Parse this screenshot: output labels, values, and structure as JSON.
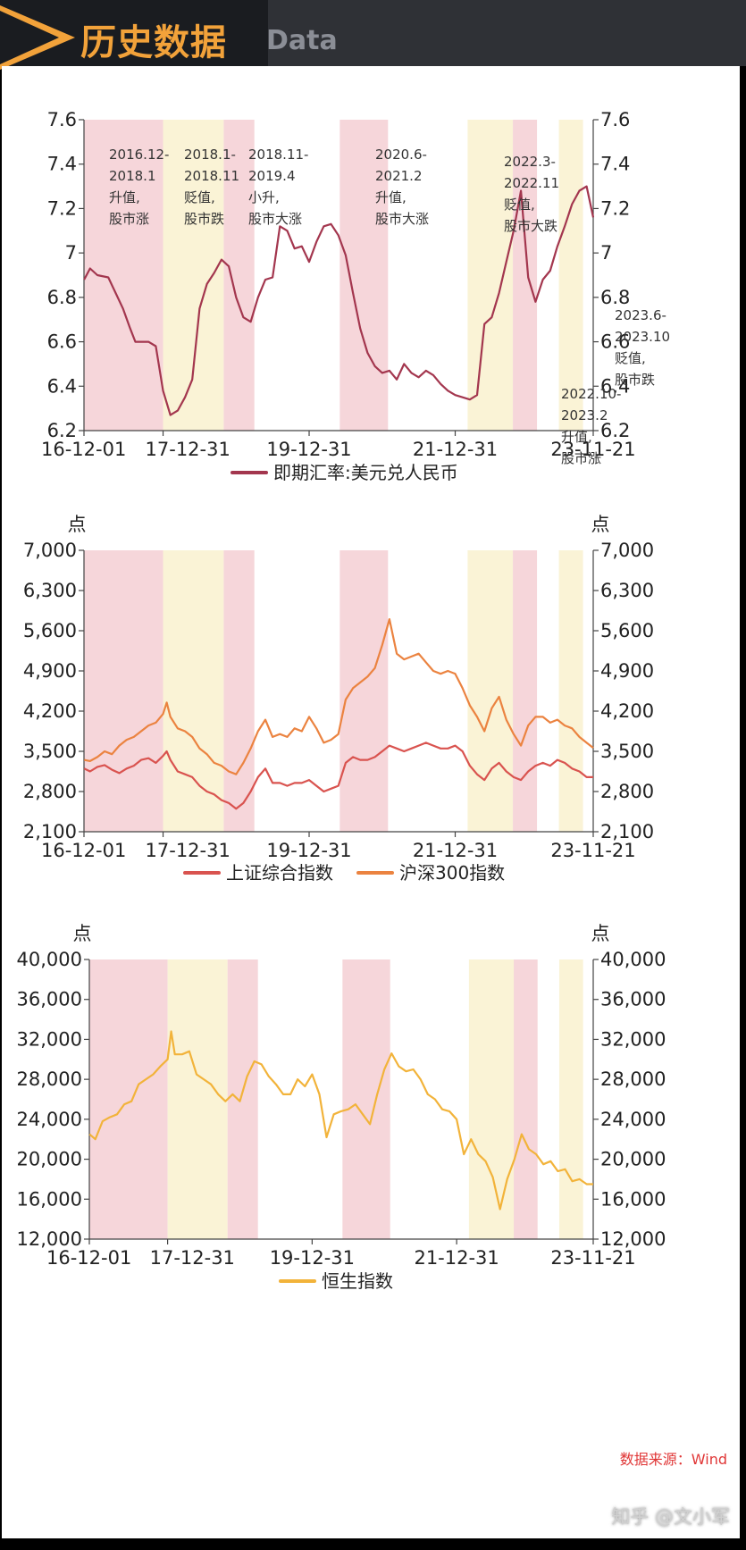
{
  "header": {
    "title": "历史数据",
    "subtitle": "Data"
  },
  "source_label": "数据来源：Wind",
  "watermark": "知乎 @文小军",
  "colors": {
    "fx_line": "#a3364e",
    "shanghai": "#d9534f",
    "csi300": "#eb8340",
    "hangseng": "#f2b33a",
    "band_pink": "#f6d6da",
    "band_yellow": "#faf3d6",
    "header_accent": "#f2a23a"
  },
  "chart_data": [
    {
      "type": "line",
      "title": "即期汇率:美元兑人民币",
      "xlabel": "",
      "ylabel": "",
      "x_tick_labels": [
        "16-12-01",
        "17-12-31",
        "19-12-31",
        "21-12-31",
        "23-11-21"
      ],
      "x_tick_dates": [
        2016.917,
        2018.0,
        2020.0,
        2022.0,
        2023.89
      ],
      "xlim": [
        2016.917,
        2023.89
      ],
      "ylim": [
        6.2,
        7.6
      ],
      "y_ticks": [
        6.2,
        6.4,
        6.6,
        6.8,
        7,
        7.2,
        7.4,
        7.6
      ],
      "y_tick_labels": [
        "6.2",
        "6.4",
        "6.6",
        "6.8",
        "7",
        "7.2",
        "7.4",
        "7.6"
      ],
      "legend": [
        "即期汇率:美元兑人民币"
      ],
      "series": [
        {
          "name": "即期汇率:美元兑人民币",
          "x": [
            2016.92,
            2017.0,
            2017.1,
            2017.25,
            2017.35,
            2017.45,
            2017.55,
            2017.62,
            2017.7,
            2017.8,
            2017.9,
            2018.0,
            2018.1,
            2018.2,
            2018.3,
            2018.4,
            2018.5,
            2018.6,
            2018.7,
            2018.8,
            2018.9,
            2019.0,
            2019.1,
            2019.2,
            2019.3,
            2019.4,
            2019.5,
            2019.6,
            2019.7,
            2019.8,
            2019.9,
            2020.0,
            2020.1,
            2020.2,
            2020.3,
            2020.4,
            2020.5,
            2020.6,
            2020.7,
            2020.8,
            2020.9,
            2021.0,
            2021.1,
            2021.2,
            2021.3,
            2021.4,
            2021.5,
            2021.6,
            2021.7,
            2021.8,
            2021.9,
            2022.0,
            2022.1,
            2022.2,
            2022.3,
            2022.4,
            2022.5,
            2022.6,
            2022.7,
            2022.8,
            2022.9,
            2023.0,
            2023.1,
            2023.2,
            2023.3,
            2023.4,
            2023.5,
            2023.6,
            2023.7,
            2023.8,
            2023.89
          ],
          "values": [
            6.88,
            6.93,
            6.9,
            6.89,
            6.82,
            6.75,
            6.66,
            6.6,
            6.6,
            6.6,
            6.58,
            6.38,
            6.27,
            6.29,
            6.35,
            6.43,
            6.75,
            6.86,
            6.91,
            6.97,
            6.94,
            6.8,
            6.71,
            6.69,
            6.8,
            6.88,
            6.89,
            7.12,
            7.1,
            7.02,
            7.03,
            6.96,
            7.05,
            7.12,
            7.13,
            7.08,
            6.99,
            6.82,
            6.66,
            6.55,
            6.49,
            6.46,
            6.47,
            6.43,
            6.5,
            6.46,
            6.44,
            6.47,
            6.45,
            6.41,
            6.38,
            6.36,
            6.35,
            6.34,
            6.36,
            6.68,
            6.71,
            6.82,
            6.96,
            7.1,
            7.28,
            6.89,
            6.78,
            6.88,
            6.92,
            7.03,
            7.12,
            7.22,
            7.28,
            7.3,
            7.16
          ]
        }
      ],
      "bands": [
        {
          "start": 2016.917,
          "end": 2018.0,
          "color": "pink",
          "label": [
            "2016.12-",
            "2018.1",
            "升值,",
            "股市涨"
          ]
        },
        {
          "start": 2018.0,
          "end": 2018.83,
          "color": "yellow",
          "label": [
            "2018.1-",
            "2018.11",
            "贬值,",
            "股市跌"
          ]
        },
        {
          "start": 2018.83,
          "end": 2019.25,
          "color": "pink",
          "label": [
            "2018.11-",
            "2019.4",
            "小升,",
            "股市大涨"
          ]
        },
        {
          "start": 2020.42,
          "end": 2021.08,
          "color": "pink",
          "label": [
            "2020.6-",
            "2021.2",
            "升值,",
            "股市大涨"
          ]
        },
        {
          "start": 2022.17,
          "end": 2022.79,
          "color": "yellow",
          "label": [
            "2022.3-",
            "2022.11",
            "贬值,",
            "股市大跌"
          ]
        },
        {
          "start": 2022.79,
          "end": 2023.12,
          "color": "pink",
          "label": [
            "2022.10-",
            "2023.2",
            "升值,",
            "股市涨"
          ]
        },
        {
          "start": 2023.42,
          "end": 2023.75,
          "color": "yellow",
          "label": [
            "2023.6-",
            "2023.10",
            "贬值,",
            "股市跌"
          ]
        }
      ]
    },
    {
      "type": "line",
      "title": "",
      "unit_label": "点",
      "x_tick_labels": [
        "16-12-01",
        "17-12-31",
        "19-12-31",
        "21-12-31",
        "23-11-21"
      ],
      "x_tick_dates": [
        2016.917,
        2018.0,
        2020.0,
        2022.0,
        2023.89
      ],
      "xlim": [
        2016.917,
        2023.89
      ],
      "ylim": [
        2100,
        7000
      ],
      "y_ticks": [
        2100,
        2800,
        3500,
        4200,
        4900,
        5600,
        6300,
        7000
      ],
      "y_tick_labels": [
        "2,100",
        "2,800",
        "3,500",
        "4,200",
        "4,900",
        "5,600",
        "6,300",
        "7,000"
      ],
      "legend": [
        "上证综合指数",
        "沪深300指数"
      ],
      "series": [
        {
          "name": "上证综合指数",
          "x": [
            2016.92,
            2017.0,
            2017.1,
            2017.2,
            2017.3,
            2017.4,
            2017.5,
            2017.6,
            2017.7,
            2017.8,
            2017.9,
            2018.0,
            2018.05,
            2018.1,
            2018.2,
            2018.3,
            2018.4,
            2018.5,
            2018.6,
            2018.7,
            2018.8,
            2018.9,
            2019.0,
            2019.1,
            2019.2,
            2019.3,
            2019.4,
            2019.5,
            2019.6,
            2019.7,
            2019.8,
            2019.9,
            2020.0,
            2020.1,
            2020.2,
            2020.3,
            2020.4,
            2020.5,
            2020.6,
            2020.7,
            2020.8,
            2020.9,
            2021.0,
            2021.1,
            2021.2,
            2021.3,
            2021.4,
            2021.5,
            2021.6,
            2021.7,
            2021.8,
            2021.9,
            2022.0,
            2022.1,
            2022.2,
            2022.3,
            2022.4,
            2022.5,
            2022.6,
            2022.7,
            2022.8,
            2022.9,
            2023.0,
            2023.1,
            2023.2,
            2023.3,
            2023.4,
            2023.5,
            2023.6,
            2023.7,
            2023.8,
            2023.89
          ],
          "values": [
            3200,
            3150,
            3230,
            3260,
            3180,
            3120,
            3200,
            3250,
            3350,
            3380,
            3300,
            3420,
            3500,
            3350,
            3150,
            3100,
            3050,
            2900,
            2800,
            2750,
            2650,
            2600,
            2500,
            2600,
            2800,
            3050,
            3200,
            2950,
            2950,
            2900,
            2950,
            2950,
            3000,
            2900,
            2800,
            2850,
            2900,
            3300,
            3400,
            3350,
            3350,
            3400,
            3500,
            3600,
            3550,
            3500,
            3550,
            3600,
            3650,
            3600,
            3550,
            3550,
            3600,
            3500,
            3250,
            3100,
            3000,
            3200,
            3300,
            3150,
            3050,
            3000,
            3150,
            3250,
            3300,
            3250,
            3350,
            3300,
            3200,
            3150,
            3050,
            3050
          ]
        },
        {
          "name": "沪深300指数",
          "x": [
            2016.92,
            2017.0,
            2017.1,
            2017.2,
            2017.3,
            2017.4,
            2017.5,
            2017.6,
            2017.7,
            2017.8,
            2017.9,
            2018.0,
            2018.05,
            2018.1,
            2018.2,
            2018.3,
            2018.4,
            2018.5,
            2018.6,
            2018.7,
            2018.8,
            2018.9,
            2019.0,
            2019.1,
            2019.2,
            2019.3,
            2019.4,
            2019.5,
            2019.6,
            2019.7,
            2019.8,
            2019.9,
            2020.0,
            2020.1,
            2020.2,
            2020.3,
            2020.4,
            2020.5,
            2020.6,
            2020.7,
            2020.8,
            2020.9,
            2021.0,
            2021.1,
            2021.2,
            2021.3,
            2021.4,
            2021.5,
            2021.6,
            2021.7,
            2021.8,
            2021.9,
            2022.0,
            2022.1,
            2022.2,
            2022.3,
            2022.4,
            2022.5,
            2022.6,
            2022.7,
            2022.8,
            2022.9,
            2023.0,
            2023.1,
            2023.2,
            2023.3,
            2023.4,
            2023.5,
            2023.6,
            2023.7,
            2023.8,
            2023.89
          ],
          "values": [
            3350,
            3330,
            3400,
            3500,
            3450,
            3600,
            3700,
            3750,
            3850,
            3950,
            4000,
            4150,
            4350,
            4100,
            3900,
            3850,
            3750,
            3550,
            3450,
            3300,
            3250,
            3150,
            3100,
            3300,
            3550,
            3850,
            4050,
            3750,
            3800,
            3750,
            3900,
            3850,
            4100,
            3900,
            3650,
            3700,
            3800,
            4400,
            4600,
            4700,
            4800,
            4950,
            5350,
            5800,
            5200,
            5100,
            5150,
            5200,
            5050,
            4900,
            4850,
            4900,
            4850,
            4600,
            4300,
            4100,
            3850,
            4250,
            4450,
            4050,
            3800,
            3600,
            3950,
            4100,
            4100,
            4000,
            4050,
            3950,
            3900,
            3750,
            3650,
            3560
          ]
        }
      ],
      "bands": [
        {
          "start": 2016.917,
          "end": 2018.0,
          "color": "pink"
        },
        {
          "start": 2018.0,
          "end": 2018.83,
          "color": "yellow"
        },
        {
          "start": 2018.83,
          "end": 2019.25,
          "color": "pink"
        },
        {
          "start": 2020.42,
          "end": 2021.08,
          "color": "pink"
        },
        {
          "start": 2022.17,
          "end": 2022.79,
          "color": "yellow"
        },
        {
          "start": 2022.79,
          "end": 2023.12,
          "color": "pink"
        },
        {
          "start": 2023.42,
          "end": 2023.75,
          "color": "yellow"
        }
      ]
    },
    {
      "type": "line",
      "title": "",
      "unit_label": "点",
      "x_tick_labels": [
        "16-12-01",
        "17-12-31",
        "19-12-31",
        "21-12-31",
        "23-11-21"
      ],
      "x_tick_dates": [
        2016.917,
        2018.0,
        2020.0,
        2022.0,
        2023.89
      ],
      "xlim": [
        2016.917,
        2023.89
      ],
      "ylim": [
        12000,
        40000
      ],
      "y_ticks": [
        12000,
        16000,
        20000,
        24000,
        28000,
        32000,
        36000,
        40000
      ],
      "y_tick_labels": [
        "12,000",
        "16,000",
        "20,000",
        "24,000",
        "28,000",
        "32,000",
        "36,000",
        "40,000"
      ],
      "legend": [
        "恒生指数"
      ],
      "series": [
        {
          "name": "恒生指数",
          "x": [
            2016.92,
            2017.0,
            2017.1,
            2017.2,
            2017.3,
            2017.4,
            2017.5,
            2017.6,
            2017.7,
            2017.8,
            2017.9,
            2018.0,
            2018.05,
            2018.1,
            2018.2,
            2018.3,
            2018.4,
            2018.5,
            2018.6,
            2018.7,
            2018.8,
            2018.9,
            2019.0,
            2019.1,
            2019.2,
            2019.3,
            2019.4,
            2019.5,
            2019.6,
            2019.7,
            2019.8,
            2019.9,
            2020.0,
            2020.1,
            2020.2,
            2020.3,
            2020.4,
            2020.5,
            2020.6,
            2020.7,
            2020.8,
            2020.9,
            2021.0,
            2021.1,
            2021.2,
            2021.3,
            2021.4,
            2021.5,
            2021.6,
            2021.7,
            2021.8,
            2021.9,
            2022.0,
            2022.1,
            2022.2,
            2022.3,
            2022.4,
            2022.5,
            2022.6,
            2022.7,
            2022.8,
            2022.9,
            2023.0,
            2023.1,
            2023.2,
            2023.3,
            2023.4,
            2023.5,
            2023.6,
            2023.7,
            2023.8,
            2023.89
          ],
          "values": [
            22500,
            22000,
            23800,
            24200,
            24500,
            25500,
            25800,
            27500,
            28000,
            28500,
            29300,
            30000,
            32800,
            30500,
            30500,
            30800,
            28500,
            28000,
            27500,
            26500,
            25800,
            26500,
            25800,
            28300,
            29800,
            29500,
            28300,
            27500,
            26500,
            26500,
            28000,
            27300,
            28500,
            26500,
            22200,
            24500,
            24800,
            25000,
            25500,
            24500,
            23500,
            26500,
            29000,
            30600,
            29300,
            28800,
            29000,
            28000,
            26500,
            26000,
            25000,
            24800,
            24000,
            20500,
            22000,
            20500,
            19800,
            18200,
            15000,
            18000,
            20000,
            22500,
            21000,
            20500,
            19500,
            19800,
            18800,
            19000,
            17800,
            18000,
            17500,
            17500
          ]
        }
      ],
      "bands": [
        {
          "start": 2016.917,
          "end": 2018.0,
          "color": "pink"
        },
        {
          "start": 2018.0,
          "end": 2018.83,
          "color": "yellow"
        },
        {
          "start": 2018.83,
          "end": 2019.25,
          "color": "pink"
        },
        {
          "start": 2020.42,
          "end": 2021.08,
          "color": "pink"
        },
        {
          "start": 2022.17,
          "end": 2022.79,
          "color": "yellow"
        },
        {
          "start": 2022.79,
          "end": 2023.12,
          "color": "pink"
        },
        {
          "start": 2023.42,
          "end": 2023.75,
          "color": "yellow"
        }
      ]
    }
  ]
}
